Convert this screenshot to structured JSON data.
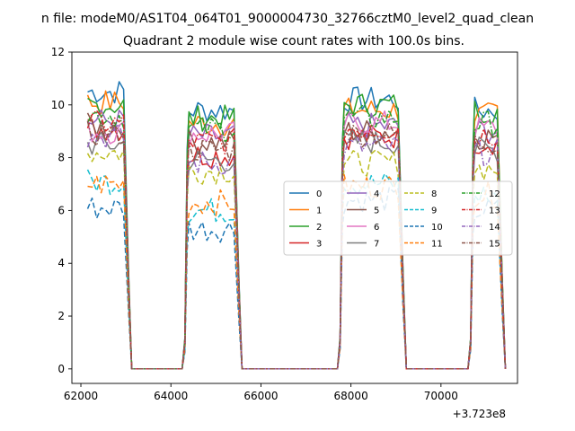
{
  "figure": {
    "suptitle": "n file: modeM0/AS1T04_064T01_9000004730_32766cztM0_level2_quad_clean",
    "title": "Quadrant 2 module wise count rates with 100.0s bins.",
    "x_offset_label": "+3.723e8"
  },
  "chart_data": {
    "type": "line",
    "title": "Quadrant 2 module wise count rates with 100.0s bins.",
    "xlabel": "",
    "ylabel": "",
    "x_offset": 372300000,
    "xlim": [
      61800,
      71700
    ],
    "ylim": [
      -0.55,
      12.0
    ],
    "xticks": [
      62000,
      64000,
      66000,
      68000,
      70000
    ],
    "xtick_labels": [
      "62000",
      "64000",
      "66000",
      "68000",
      "70000"
    ],
    "yticks": [
      0,
      2,
      4,
      6,
      8,
      10,
      12
    ],
    "ytick_labels": [
      "0",
      "2",
      "4",
      "6",
      "8",
      "10",
      "12"
    ],
    "grid": false,
    "legend_position": "center-right",
    "legend_columns": 4,
    "segments": [
      {
        "start": 62150,
        "end": 63000
      },
      {
        "start": 64400,
        "end": 65450
      },
      {
        "start": 67850,
        "end": 69100
      },
      {
        "start": 70750,
        "end": 71300
      }
    ],
    "zero_ranges": [
      [
        63150,
        64250
      ],
      [
        65600,
        67700
      ],
      [
        69250,
        70600
      ]
    ],
    "series": [
      {
        "name": "0",
        "color": "#1f77b4",
        "dash": "solid",
        "levels": [
          10.5,
          9.8,
          10.2,
          9.8
        ]
      },
      {
        "name": "1",
        "color": "#ff7f0e",
        "dash": "solid",
        "levels": [
          10.1,
          9.3,
          9.8,
          9.6
        ]
      },
      {
        "name": "2",
        "color": "#2ca02c",
        "dash": "solid",
        "levels": [
          10.0,
          9.5,
          10.0,
          9.8
        ]
      },
      {
        "name": "3",
        "color": "#d62728",
        "dash": "solid",
        "levels": [
          9.1,
          8.1,
          8.8,
          8.6
        ]
      },
      {
        "name": "4",
        "color": "#9467bd",
        "dash": "solid",
        "levels": [
          9.4,
          8.8,
          9.2,
          9.0
        ]
      },
      {
        "name": "5",
        "color": "#8c564b",
        "dash": "solid",
        "levels": [
          9.2,
          8.6,
          9.0,
          8.8
        ]
      },
      {
        "name": "6",
        "color": "#e377c2",
        "dash": "solid",
        "levels": [
          9.0,
          8.9,
          9.3,
          9.1
        ]
      },
      {
        "name": "7",
        "color": "#7f7f7f",
        "dash": "solid",
        "levels": [
          8.5,
          7.9,
          8.6,
          8.3
        ]
      },
      {
        "name": "8",
        "color": "#bcbd22",
        "dash": "dashed",
        "levels": [
          8.2,
          7.5,
          7.8,
          7.6
        ]
      },
      {
        "name": "9",
        "color": "#17becf",
        "dash": "dashed",
        "levels": [
          7.1,
          6.0,
          7.0,
          6.6
        ]
      },
      {
        "name": "10",
        "color": "#1f77b4",
        "dash": "dashed",
        "levels": [
          6.1,
          5.3,
          6.4,
          6.0
        ]
      },
      {
        "name": "11",
        "color": "#ff7f0e",
        "dash": "dashed",
        "levels": [
          7.0,
          6.3,
          6.9,
          6.6
        ]
      },
      {
        "name": "12",
        "color": "#2ca02c",
        "dash": "dashdot",
        "levels": [
          9.6,
          9.1,
          9.5,
          9.3
        ]
      },
      {
        "name": "13",
        "color": "#d62728",
        "dash": "dashdot",
        "levels": [
          9.3,
          8.6,
          9.1,
          8.9
        ]
      },
      {
        "name": "14",
        "color": "#9467bd",
        "dash": "dashdot",
        "levels": [
          8.8,
          7.8,
          8.4,
          8.2
        ]
      },
      {
        "name": "15",
        "color": "#8c564b",
        "dash": "dashdot",
        "levels": [
          8.9,
          8.3,
          8.9,
          8.6
        ]
      }
    ]
  }
}
